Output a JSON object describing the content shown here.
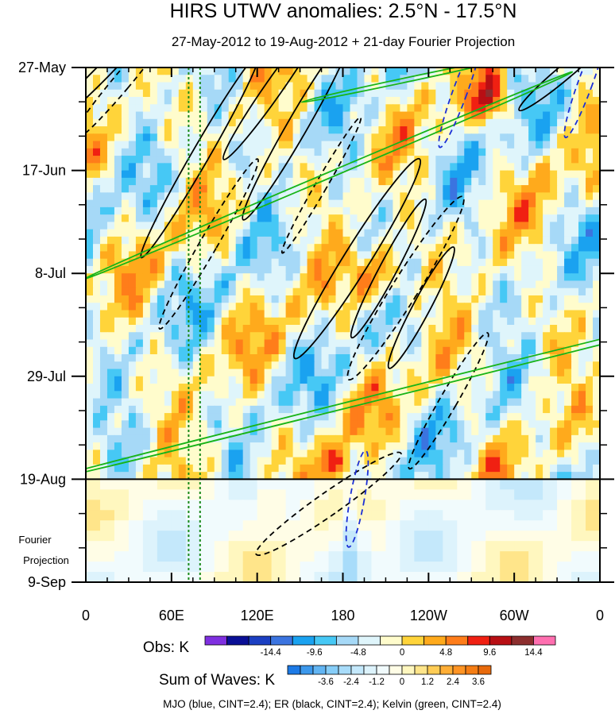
{
  "chart_data": {
    "type": "heatmap",
    "title": "HIRS UTWV anomalies: 2.5°N - 17.5°N",
    "subtitle": "27-May-2012 to 19-Aug-2012 + 21-day Fourier Projection",
    "x_axis": {
      "labels": [
        "0",
        "60E",
        "120E",
        "180",
        "120W",
        "60W",
        "0"
      ],
      "longitudes_east": [
        0,
        60,
        120,
        180,
        240,
        300,
        360
      ],
      "range": [
        0,
        360
      ]
    },
    "y_axis": {
      "labels": [
        "27-May",
        "17-Jun",
        "8-Jul",
        "29-Jul",
        "19-Aug",
        "9-Sep"
      ],
      "day_offsets": [
        0,
        21,
        42,
        63,
        84,
        105
      ],
      "range_days": [
        0,
        105
      ],
      "direction": "time increases downward"
    },
    "observation_end_day": 84,
    "projection_label": [
      "Fourier",
      "Projection"
    ],
    "reference_longitudes_east": [
      72,
      80
    ],
    "colorbars": [
      {
        "title": "Obs: K",
        "units": "K",
        "tick_labels": [
          "-14.4",
          "-9.6",
          "-4.8",
          "0",
          "4.8",
          "9.6",
          "14.4"
        ],
        "levels": [
          -16.8,
          -14.4,
          -12,
          -9.6,
          -7.2,
          -4.8,
          -2.4,
          0,
          2.4,
          4.8,
          7.2,
          9.6,
          12,
          14.4,
          16.8
        ],
        "colors": [
          "#7f2fe0",
          "#0a0f96",
          "#1b3fc2",
          "#3b74e0",
          "#1aa2f0",
          "#46c8f5",
          "#a6d9f7",
          "#dff5fb",
          "#fffccc",
          "#ffd43a",
          "#ffaa1c",
          "#ff7d1a",
          "#f02012",
          "#b80f14",
          "#8c2e2e",
          "#ff6fb0"
        ]
      },
      {
        "title": "Sum of Waves: K",
        "units": "K",
        "tick_labels": [
          "-3.6",
          "-2.4",
          "-1.2",
          "0",
          "1.2",
          "2.4",
          "3.6"
        ],
        "levels": [
          -4.2,
          -3.6,
          -3.0,
          -2.4,
          -1.8,
          -1.2,
          -0.6,
          0,
          0.6,
          1.2,
          1.8,
          2.4,
          3.0,
          3.6,
          4.2
        ],
        "colors": [
          "#1c7ae6",
          "#3c98ec",
          "#62b5f3",
          "#86cdf8",
          "#a8dcfa",
          "#c4e8fb",
          "#ddf3fc",
          "#f1fbfd",
          "#fffde6",
          "#fff7bf",
          "#ffe58a",
          "#ffcc55",
          "#ffae36",
          "#ff9424",
          "#f57d14",
          "#e86a0c"
        ]
      }
    ],
    "contours": [
      {
        "wave": "MJO",
        "color": "blue",
        "cint": 2.4
      },
      {
        "wave": "ER",
        "color": "black",
        "cint": 2.4
      },
      {
        "wave": "Kelvin",
        "color": "green",
        "cint": 2.4
      }
    ],
    "footer": "MJO (blue, CINT=2.4); ER (black, CINT=2.4); Kelvin (green, CINT=2.4)"
  }
}
